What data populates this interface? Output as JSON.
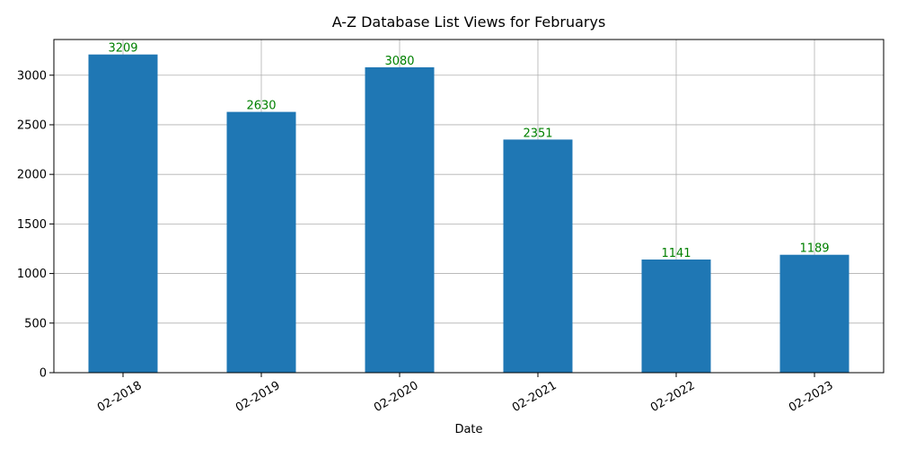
{
  "chart_data": {
    "type": "bar",
    "title": "A-Z Database List Views for Februarys",
    "xlabel": "Date",
    "ylabel": "",
    "categories": [
      "02-2018",
      "02-2019",
      "02-2020",
      "02-2021",
      "02-2022",
      "02-2023"
    ],
    "values": [
      3209,
      2630,
      3080,
      2351,
      1141,
      1189
    ],
    "data_labels": [
      "3209",
      "2630",
      "3080",
      "2351",
      "1141",
      "1189"
    ],
    "ylim": [
      0,
      3360
    ],
    "yticks": [
      0,
      500,
      1000,
      1500,
      2000,
      2500,
      3000
    ],
    "ytick_labels": [
      "0",
      "500",
      "1000",
      "1500",
      "2000",
      "2500",
      "3000"
    ],
    "grid": true,
    "bar_color": "#1f77b4",
    "label_color": "#008000"
  }
}
